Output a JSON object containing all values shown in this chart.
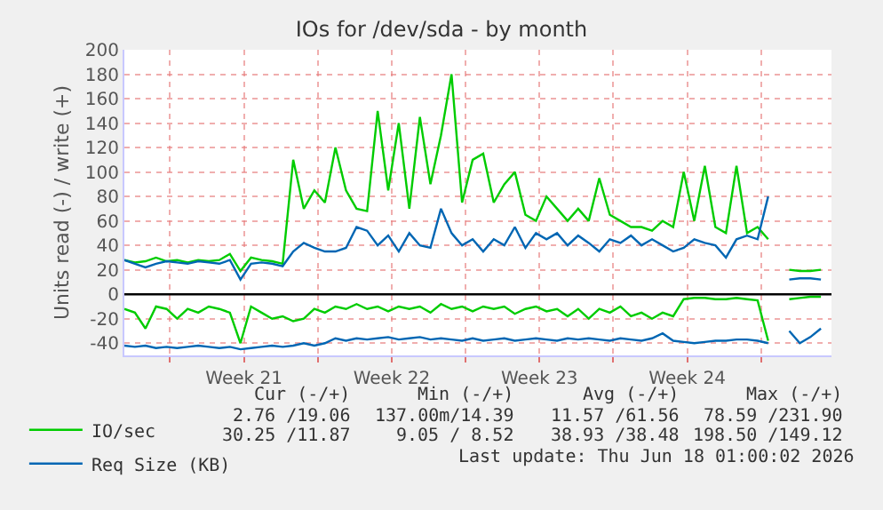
{
  "chart_data": {
    "type": "line",
    "title": "IOs for /dev/sda - by month",
    "ylabel": "Units read (-) / write (+)",
    "x": [
      "2026-05-15T20:00",
      "2026-05-16T08:00",
      "2026-05-16T20:00",
      "2026-05-17T08:00",
      "2026-05-17T20:00",
      "2026-05-18T08:00",
      "2026-05-18T20:00",
      "2026-05-19T08:00",
      "2026-05-19T20:00",
      "2026-05-20T08:00",
      "2026-05-20T20:00",
      "2026-05-21T08:00",
      "2026-05-21T20:00",
      "2026-05-22T08:00",
      "2026-05-22T20:00",
      "2026-05-23T08:00",
      "2026-05-23T20:00",
      "2026-05-24T08:00",
      "2026-05-24T20:00",
      "2026-05-25T08:00",
      "2026-05-25T20:00",
      "2026-05-26T08:00",
      "2026-05-26T20:00",
      "2026-05-27T08:00",
      "2026-05-27T20:00",
      "2026-05-28T08:00",
      "2026-05-28T20:00",
      "2026-05-29T08:00",
      "2026-05-29T20:00",
      "2026-05-30T08:00",
      "2026-05-30T20:00",
      "2026-05-31T08:00",
      "2026-05-31T20:00",
      "2026-06-01T08:00",
      "2026-06-01T20:00",
      "2026-06-02T08:00",
      "2026-06-02T20:00",
      "2026-06-03T08:00",
      "2026-06-03T20:00",
      "2026-06-04T08:00",
      "2026-06-04T20:00",
      "2026-06-05T08:00",
      "2026-06-05T20:00",
      "2026-06-06T08:00",
      "2026-06-06T20:00",
      "2026-06-07T08:00",
      "2026-06-07T20:00",
      "2026-06-08T08:00",
      "2026-06-08T20:00",
      "2026-06-09T08:00",
      "2026-06-09T20:00",
      "2026-06-10T08:00",
      "2026-06-10T20:00",
      "2026-06-11T08:00",
      "2026-06-11T20:00",
      "2026-06-12T08:00",
      "2026-06-12T20:00",
      "2026-06-13T08:00",
      "2026-06-13T20:00",
      "2026-06-14T08:00",
      "2026-06-14T20:00",
      "2026-06-15T08:00",
      "2026-06-15T20:00",
      "2026-06-16T08:00",
      "2026-06-16T20:00",
      "2026-06-17T08:00",
      "2026-06-17T20:00"
    ],
    "series": [
      {
        "name": "IO/sec",
        "color": "#00cc00",
        "values": [
          28,
          26,
          27,
          30,
          27,
          28,
          26,
          28,
          27,
          28,
          33,
          19,
          30,
          28,
          27,
          25,
          110,
          70,
          85,
          75,
          120,
          85,
          70,
          68,
          150,
          85,
          140,
          70,
          145,
          90,
          130,
          180,
          75,
          110,
          115,
          75,
          90,
          100,
          65,
          60,
          80,
          70,
          60,
          70,
          60,
          95,
          65,
          60,
          55,
          55,
          52,
          60,
          55,
          100,
          60,
          105,
          55,
          50,
          105,
          50,
          55,
          45,
          null,
          20,
          19,
          19,
          20
        ]
      },
      {
        "color": "#00cc00",
        "values": [
          -12,
          -15,
          -28,
          -10,
          -12,
          -20,
          -12,
          -15,
          -10,
          -12,
          -15,
          -40,
          -10,
          -15,
          -20,
          -18,
          -22,
          -20,
          -12,
          -15,
          -10,
          -12,
          -8,
          -12,
          -10,
          -14,
          -10,
          -12,
          -10,
          -15,
          -8,
          -12,
          -10,
          -14,
          -10,
          -12,
          -10,
          -16,
          -12,
          -10,
          -14,
          -12,
          -18,
          -12,
          -20,
          -12,
          -15,
          -10,
          -18,
          -15,
          -20,
          -15,
          -18,
          -4,
          -3,
          -3,
          -4,
          -4,
          -3,
          -4,
          -5,
          -38,
          null,
          -4,
          -3,
          -2,
          -2
        ]
      },
      {
        "name": "Req Size (KB)",
        "color": "#0066b3",
        "values": [
          28,
          25,
          22,
          25,
          27,
          26,
          25,
          27,
          26,
          25,
          28,
          12,
          25,
          26,
          25,
          23,
          35,
          42,
          38,
          35,
          35,
          38,
          55,
          52,
          40,
          48,
          35,
          50,
          40,
          38,
          70,
          50,
          40,
          45,
          35,
          45,
          40,
          55,
          38,
          50,
          45,
          50,
          40,
          48,
          42,
          35,
          45,
          42,
          48,
          40,
          45,
          40,
          35,
          38,
          45,
          42,
          40,
          30,
          45,
          48,
          45,
          80,
          null,
          12,
          13,
          13,
          12
        ]
      },
      {
        "color": "#0066b3",
        "values": [
          -42,
          -43,
          -42,
          -44,
          -43,
          -44,
          -43,
          -42,
          -43,
          -44,
          -43,
          -45,
          -44,
          -43,
          -42,
          -43,
          -42,
          -40,
          -42,
          -40,
          -36,
          -38,
          -36,
          -37,
          -36,
          -35,
          -37,
          -36,
          -35,
          -37,
          -36,
          -37,
          -38,
          -36,
          -38,
          -37,
          -36,
          -38,
          -37,
          -36,
          -37,
          -38,
          -36,
          -37,
          -36,
          -37,
          -38,
          -36,
          -37,
          -38,
          -36,
          -32,
          -38,
          -39,
          -40,
          -39,
          -38,
          -38,
          -37,
          -37,
          -38,
          -40,
          null,
          -30,
          -40,
          -35,
          -28
        ]
      }
    ],
    "xlim": [
      "2026-05-15T20:00",
      "2026-06-18T08:00"
    ],
    "xticks": [
      {
        "value": "2026-05-18",
        "label": null
      },
      {
        "value": "2026-05-21T12:00",
        "label": "Week 21"
      },
      {
        "value": "2026-05-25",
        "label": null
      },
      {
        "value": "2026-05-28T12:00",
        "label": "Week 22"
      },
      {
        "value": "2026-06-01",
        "label": null
      },
      {
        "value": "2026-06-04T12:00",
        "label": "Week 23"
      },
      {
        "value": "2026-06-08",
        "label": null
      },
      {
        "value": "2026-06-11T12:00",
        "label": "Week 24"
      },
      {
        "value": "2026-06-15",
        "label": null
      }
    ],
    "ylim": [
      -50,
      200
    ],
    "yticks": [
      -40,
      -20,
      0,
      20,
      40,
      60,
      80,
      100,
      120,
      140,
      160,
      180,
      200
    ],
    "ref_lines": [
      {
        "axis": "y",
        "value": 0,
        "color": "#000000"
      }
    ],
    "grid": true,
    "legend": "bottom left",
    "marker": "none",
    "line_style": "solid",
    "annotations": [
      "Cur (-/+)",
      "Min (-/+)",
      "Avg (-/+)",
      "Max (-/+)",
      "2.76 /19.06",
      "137.00m/14.39",
      "11.57 /61.56",
      "78.59 /231.90",
      "30.25 /11.87",
      "9.05 / 8.52",
      "38.93 /38.48",
      "198.50 /149.12",
      "Last update: Thu Jun 18 01:00:02 2026"
    ]
  }
}
